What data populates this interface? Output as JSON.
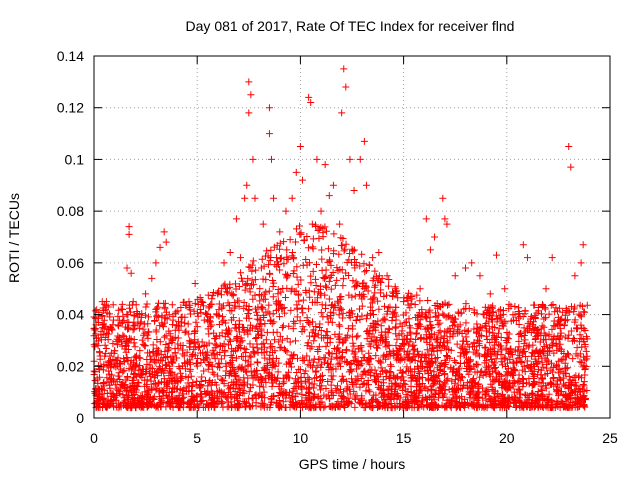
{
  "chart_data": {
    "type": "scatter",
    "title": "Day 081 of 2017, Rate Of TEC Index for receiver flnd",
    "xlabel": "GPS time / hours",
    "ylabel": "ROTI / TECUs",
    "xlim": [
      0,
      25
    ],
    "ylim": [
      0,
      0.14
    ],
    "x_ticks": [
      0,
      5,
      10,
      15,
      20,
      25
    ],
    "x_tick_labels": [
      "0",
      "5",
      "10",
      "15",
      "20",
      "25"
    ],
    "y_ticks": [
      0,
      0.02,
      0.04,
      0.06,
      0.08,
      0.1,
      0.12,
      0.14
    ],
    "y_tick_labels": [
      "0",
      "0.02",
      "0.04",
      "0.06",
      "0.08",
      "0.1",
      "0.12",
      "0.14"
    ],
    "grid": true,
    "marker": "+",
    "marker_color": "#ff0000",
    "series": [
      {
        "points": [
          [
            0.1,
            0.036
          ],
          [
            0.2,
            0.028
          ],
          [
            0.3,
            0.024
          ],
          [
            0.4,
            0.045
          ],
          [
            0.5,
            0.044
          ],
          [
            0.6,
            0.045
          ],
          [
            0.8,
            0.035
          ],
          [
            1.0,
            0.026
          ],
          [
            1.2,
            0.03
          ],
          [
            1.4,
            0.032
          ],
          [
            1.6,
            0.058
          ],
          [
            1.7,
            0.074
          ],
          [
            1.7,
            0.071
          ],
          [
            1.8,
            0.056
          ],
          [
            1.9,
            0.045
          ],
          [
            2.2,
            0.04
          ],
          [
            2.5,
            0.048
          ],
          [
            2.8,
            0.054
          ],
          [
            3.0,
            0.06
          ],
          [
            3.2,
            0.066
          ],
          [
            3.4,
            0.072
          ],
          [
            3.5,
            0.068
          ],
          [
            3.8,
            0.03
          ],
          [
            4.2,
            0.028
          ],
          [
            4.6,
            0.045
          ],
          [
            4.9,
            0.052
          ],
          [
            5.2,
            0.045
          ],
          [
            5.5,
            0.038
          ],
          [
            6.0,
            0.048
          ],
          [
            6.3,
            0.06
          ],
          [
            6.6,
            0.064
          ],
          [
            6.9,
            0.077
          ],
          [
            7.1,
            0.062
          ],
          [
            7.3,
            0.085
          ],
          [
            7.4,
            0.09
          ],
          [
            7.5,
            0.13
          ],
          [
            7.6,
            0.125
          ],
          [
            7.5,
            0.118
          ],
          [
            7.7,
            0.1
          ],
          [
            7.8,
            0.085
          ],
          [
            8.2,
            0.075
          ],
          [
            8.5,
            0.12
          ],
          [
            8.5,
            0.11
          ],
          [
            8.6,
            0.1
          ],
          [
            8.7,
            0.085
          ],
          [
            9.0,
            0.072
          ],
          [
            9.3,
            0.08
          ],
          [
            9.6,
            0.085
          ],
          [
            9.8,
            0.095
          ],
          [
            10.0,
            0.105
          ],
          [
            10.1,
            0.092
          ],
          [
            10.4,
            0.124
          ],
          [
            10.5,
            0.122
          ],
          [
            10.8,
            0.1
          ],
          [
            11.0,
            0.08
          ],
          [
            11.2,
            0.098
          ],
          [
            11.4,
            0.086
          ],
          [
            11.6,
            0.09
          ],
          [
            11.9,
            0.075
          ],
          [
            12.0,
            0.118
          ],
          [
            12.1,
            0.135
          ],
          [
            12.2,
            0.128
          ],
          [
            12.4,
            0.1
          ],
          [
            12.6,
            0.088
          ],
          [
            12.9,
            0.1
          ],
          [
            13.1,
            0.107
          ],
          [
            13.2,
            0.09
          ],
          [
            13.5,
            0.062
          ],
          [
            13.8,
            0.064
          ],
          [
            14.2,
            0.055
          ],
          [
            14.6,
            0.05
          ],
          [
            15.0,
            0.045
          ],
          [
            15.4,
            0.046
          ],
          [
            15.8,
            0.05
          ],
          [
            16.1,
            0.077
          ],
          [
            16.3,
            0.065
          ],
          [
            16.5,
            0.07
          ],
          [
            16.9,
            0.085
          ],
          [
            17.0,
            0.077
          ],
          [
            17.1,
            0.075
          ],
          [
            17.5,
            0.055
          ],
          [
            18.0,
            0.058
          ],
          [
            18.3,
            0.06
          ],
          [
            18.7,
            0.055
          ],
          [
            19.2,
            0.048
          ],
          [
            19.5,
            0.063
          ],
          [
            19.9,
            0.05
          ],
          [
            20.4,
            0.04
          ],
          [
            20.8,
            0.067
          ],
          [
            21.0,
            0.062
          ],
          [
            21.4,
            0.035
          ],
          [
            21.9,
            0.05
          ],
          [
            22.2,
            0.062
          ],
          [
            22.6,
            0.038
          ],
          [
            23.0,
            0.105
          ],
          [
            23.1,
            0.097
          ],
          [
            23.3,
            0.055
          ],
          [
            23.6,
            0.06
          ],
          [
            23.7,
            0.067
          ]
        ]
      }
    ]
  }
}
